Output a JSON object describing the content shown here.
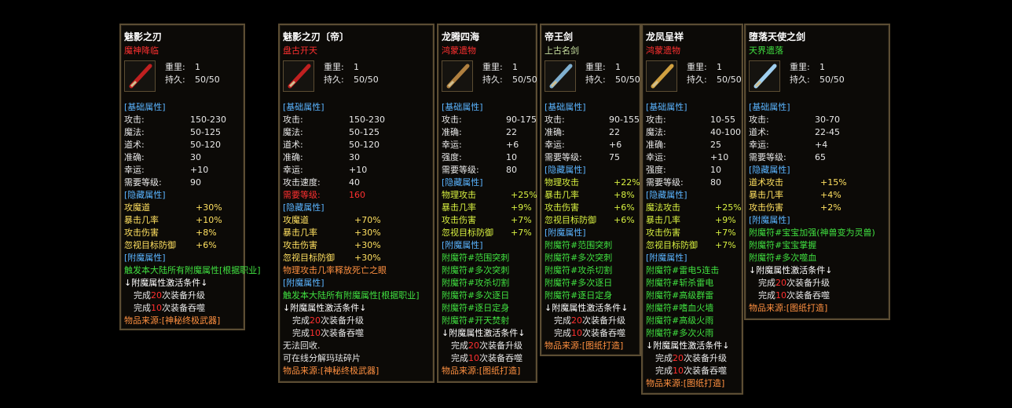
{
  "panels": [
    {
      "name": "魅影之刃",
      "subtitle": "魔神降临",
      "subtitle_color": "#ff3030",
      "weight": {
        "label": "重里:",
        "value": "1"
      },
      "durability": {
        "label": "持久:",
        "value": "50/50"
      },
      "lines": [
        {
          "text": "[基础属性]",
          "color": "#5ab4ff"
        },
        {
          "label": "攻击:",
          "value": "150-230",
          "color": "#e8e8e8"
        },
        {
          "label": "魔法:",
          "value": "50-125",
          "color": "#e8e8e8"
        },
        {
          "label": "道术:",
          "value": "50-120",
          "color": "#e8e8e8"
        },
        {
          "label": "准确:",
          "value": "30",
          "color": "#e8e8e8"
        },
        {
          "label": "幸运:",
          "value": "+10",
          "color": "#e8e8e8"
        },
        {
          "label": "需要等级:",
          "value": "90",
          "color": "#e8e8e8"
        },
        {
          "text": "[隐藏属性]",
          "color": "#5ab4ff"
        },
        {
          "label": "攻魔道",
          "value": "+30%",
          "color": "#ffe060"
        },
        {
          "label": "暴击几率",
          "value": "+10%",
          "color": "#ffe060"
        },
        {
          "label": "攻击伤害",
          "value": "+8%",
          "color": "#ffe060"
        },
        {
          "label": "忽视目标防御",
          "value": "+6%",
          "color": "#ffe060"
        },
        {
          "text": "[附魔属性]",
          "color": "#5ab4ff"
        },
        {
          "text": "触发本大陆所有附魔属性[根据职业]",
          "color": "#40e040"
        },
        {
          "text": "↓附魔属性激活条件↓",
          "color": "#ffffff"
        },
        {
          "parts": [
            "完成",
            "20",
            "次装备升级"
          ],
          "color": "#e8e8e8"
        },
        {
          "parts": [
            "完成",
            "10",
            "次装备吞噬"
          ],
          "color": "#e8e8e8"
        },
        {
          "text": "物品来源:[神秘终极武器]",
          "color": "#ff9040"
        }
      ]
    },
    {
      "name": "魅影之刃〔帝〕",
      "subtitle": "盘古开天",
      "subtitle_color": "#ff3030",
      "weight": {
        "label": "重里:",
        "value": "1"
      },
      "durability": {
        "label": "持久:",
        "value": "50/50"
      },
      "lines": [
        {
          "text": "[基础属性]",
          "color": "#5ab4ff"
        },
        {
          "label": "攻击:",
          "value": "150-230",
          "color": "#e8e8e8"
        },
        {
          "label": "魔法:",
          "value": "50-125",
          "color": "#e8e8e8"
        },
        {
          "label": "道术:",
          "value": "50-120",
          "color": "#e8e8e8"
        },
        {
          "label": "准确:",
          "value": "30",
          "color": "#e8e8e8"
        },
        {
          "label": "幸运:",
          "value": "+10",
          "color": "#e8e8e8"
        },
        {
          "label": "攻击速度:",
          "value": "40",
          "color": "#e8e8e8"
        },
        {
          "label": "需要等级:",
          "value": "160",
          "color": "#ff3030"
        },
        {
          "text": "[隐藏属性]",
          "color": "#5ab4ff"
        },
        {
          "label": "攻魔道",
          "value": "+70%",
          "color": "#ffe060"
        },
        {
          "label": "暴击几率",
          "value": "+30%",
          "color": "#ffe060"
        },
        {
          "label": "攻击伤害",
          "value": "+30%",
          "color": "#ffe060"
        },
        {
          "label": "忽视目标防御",
          "value": "+30%",
          "color": "#ffe060"
        },
        {
          "text": "物理攻击几率释放死亡之眼",
          "color": "#ff9040"
        },
        {
          "text": "[附魔属性]",
          "color": "#5ab4ff"
        },
        {
          "text": "触发本大陆所有附魔属性[根据职业]",
          "color": "#40e040"
        },
        {
          "text": "↓附魔属性激活条件↓",
          "color": "#ffffff"
        },
        {
          "parts": [
            "完成",
            "20",
            "次装备升级"
          ],
          "color": "#e8e8e8"
        },
        {
          "parts": [
            "完成",
            "10",
            "次装备吞噬"
          ],
          "color": "#e8e8e8"
        },
        {
          "text": "无法回收.",
          "color": "#e8e8e8"
        },
        {
          "text": "可在线分解玛珐碎片",
          "color": "#e8e8e8"
        },
        {
          "text": "物品来源:[神秘终极武器]",
          "color": "#ff9040"
        }
      ]
    },
    {
      "name": "龙腾四海",
      "subtitle": "鸿蒙遗物",
      "subtitle_color": "#ff3030",
      "weight": {
        "label": "重里:",
        "value": "1"
      },
      "durability": {
        "label": "持久:",
        "value": "50/50"
      },
      "lines": [
        {
          "text": "[基础属性]",
          "color": "#5ab4ff"
        },
        {
          "label": "攻击:",
          "value": "90-175",
          "color": "#e8e8e8"
        },
        {
          "label": "准确:",
          "value": "22",
          "color": "#e8e8e8"
        },
        {
          "label": "幸运:",
          "value": "+6",
          "color": "#e8e8e8"
        },
        {
          "label": "强度:",
          "value": "10",
          "color": "#e8e8e8"
        },
        {
          "label": "需要等级:",
          "value": "80",
          "color": "#e8e8e8"
        },
        {
          "text": "[隐藏属性]",
          "color": "#5ab4ff"
        },
        {
          "label": "物理攻击",
          "value": "+25%",
          "color": "#d8f040"
        },
        {
          "label": "暴击几率",
          "value": "+9%",
          "color": "#d8f040"
        },
        {
          "label": "攻击伤害",
          "value": "+7%",
          "color": "#d8f040"
        },
        {
          "label": "忽视目标防御",
          "value": "+7%",
          "color": "#d8f040"
        },
        {
          "text": "[附魔属性]",
          "color": "#5ab4ff"
        },
        {
          "text": "附魔符#范围突刺",
          "color": "#40e040"
        },
        {
          "text": "附魔符#多次突刺",
          "color": "#40e040"
        },
        {
          "text": "附魔符#攻杀切割",
          "color": "#40e040"
        },
        {
          "text": "附魔符#多次逐日",
          "color": "#40e040"
        },
        {
          "text": "附魔符#逐日定身",
          "color": "#40e040"
        },
        {
          "text": "附魔符#开天焚射",
          "color": "#40e040"
        },
        {
          "text": "↓附魔属性激活条件↓",
          "color": "#ffffff"
        },
        {
          "parts": [
            "完成",
            "20",
            "次装备升级"
          ],
          "color": "#e8e8e8"
        },
        {
          "parts": [
            "完成",
            "10",
            "次装备吞噬"
          ],
          "color": "#e8e8e8"
        },
        {
          "text": "物品来源:[图纸打造]",
          "color": "#ff9040"
        }
      ]
    },
    {
      "name": "帝王剑",
      "subtitle": "上古名剑",
      "subtitle_color": "#c8e0a0",
      "weight": {
        "label": "重里:",
        "value": "1"
      },
      "durability": {
        "label": "持久:",
        "value": "50/50"
      },
      "lines": [
        {
          "text": "[基础属性]",
          "color": "#5ab4ff"
        },
        {
          "label": "攻击:",
          "value": "90-155",
          "color": "#e8e8e8"
        },
        {
          "label": "准确:",
          "value": "22",
          "color": "#e8e8e8"
        },
        {
          "label": "幸运:",
          "value": "+6",
          "color": "#e8e8e8"
        },
        {
          "label": "需要等级:",
          "value": "75",
          "color": "#e8e8e8"
        },
        {
          "text": "[隐藏属性]",
          "color": "#5ab4ff"
        },
        {
          "label": "物理攻击",
          "value": "+22%",
          "color": "#d8f040"
        },
        {
          "label": "暴击几率",
          "value": "+8%",
          "color": "#d8f040"
        },
        {
          "label": "攻击伤害",
          "value": "+6%",
          "color": "#d8f040"
        },
        {
          "label": "忽视目标防御",
          "value": "+6%",
          "color": "#d8f040"
        },
        {
          "text": "[附魔属性]",
          "color": "#5ab4ff"
        },
        {
          "text": "附魔符#范围突刺",
          "color": "#40e040"
        },
        {
          "text": "附魔符#多次突刺",
          "color": "#40e040"
        },
        {
          "text": "附魔符#攻杀切割",
          "color": "#40e040"
        },
        {
          "text": "附魔符#多次逐日",
          "color": "#40e040"
        },
        {
          "text": "附魔符#逐日定身",
          "color": "#40e040"
        },
        {
          "text": "↓附魔属性激活条件↓",
          "color": "#ffffff"
        },
        {
          "parts": [
            "完成",
            "20",
            "次装备升级"
          ],
          "color": "#e8e8e8"
        },
        {
          "parts": [
            "完成",
            "10",
            "次装备吞噬"
          ],
          "color": "#e8e8e8"
        },
        {
          "text": "物品来源:[图纸打造]",
          "color": "#ff9040"
        }
      ]
    },
    {
      "name": "龙凤呈祥",
      "subtitle": "鸿蒙遗物",
      "subtitle_color": "#ff3030",
      "weight": {
        "label": "重里:",
        "value": "1"
      },
      "durability": {
        "label": "持久:",
        "value": "50/50"
      },
      "lines": [
        {
          "text": "[基础属性]",
          "color": "#5ab4ff"
        },
        {
          "label": "攻击:",
          "value": "10-55",
          "color": "#e8e8e8"
        },
        {
          "label": "魔法:",
          "value": "40-100",
          "color": "#e8e8e8"
        },
        {
          "label": "准确:",
          "value": "25",
          "color": "#e8e8e8"
        },
        {
          "label": "幸运:",
          "value": "+10",
          "color": "#e8e8e8"
        },
        {
          "label": "强度:",
          "value": "10",
          "color": "#e8e8e8"
        },
        {
          "label": "需要等级:",
          "value": "80",
          "color": "#e8e8e8"
        },
        {
          "text": "[隐藏属性]",
          "color": "#5ab4ff"
        },
        {
          "label": "魔法攻击",
          "value": "+25%",
          "color": "#d8f040"
        },
        {
          "label": "暴击几率",
          "value": "+9%",
          "color": "#d8f040"
        },
        {
          "label": "攻击伤害",
          "value": "+7%",
          "color": "#d8f040"
        },
        {
          "label": "忽视目标防御",
          "value": "+7%",
          "color": "#d8f040"
        },
        {
          "text": "[附魔属性]",
          "color": "#5ab4ff"
        },
        {
          "text": "附魔符#雷电5连击",
          "color": "#40e040"
        },
        {
          "text": "附魔符#斩杀雷电",
          "color": "#40e040"
        },
        {
          "text": "附魔符#高级群雷",
          "color": "#40e040"
        },
        {
          "text": "附魔符#嗜血火墙",
          "color": "#40e040"
        },
        {
          "text": "附魔符#高级火雨",
          "color": "#40e040"
        },
        {
          "text": "附魔符#多次火雨",
          "color": "#40e040"
        },
        {
          "text": "↓附魔属性激活条件↓",
          "color": "#ffffff"
        },
        {
          "parts": [
            "完成",
            "20",
            "次装备升级"
          ],
          "color": "#e8e8e8"
        },
        {
          "parts": [
            "完成",
            "10",
            "次装备吞噬"
          ],
          "color": "#e8e8e8"
        },
        {
          "text": "物品来源:[图纸打造]",
          "color": "#ff9040"
        }
      ]
    },
    {
      "name": "堕落天使之剑",
      "subtitle": "天界遗落",
      "subtitle_color": "#40e040",
      "weight": {
        "label": "重里:",
        "value": "1"
      },
      "durability": {
        "label": "持久:",
        "value": "50/50"
      },
      "lines": [
        {
          "text": "[基础属性]",
          "color": "#5ab4ff"
        },
        {
          "label": "攻击:",
          "value": "30-70",
          "color": "#e8e8e8"
        },
        {
          "label": "道术:",
          "value": "22-45",
          "color": "#e8e8e8"
        },
        {
          "label": "幸运:",
          "value": "+4",
          "color": "#e8e8e8"
        },
        {
          "label": "需要等级:",
          "value": "65",
          "color": "#e8e8e8"
        },
        {
          "text": "[隐藏属性]",
          "color": "#5ab4ff"
        },
        {
          "label": "道术攻击",
          "value": "+15%",
          "color": "#ffe060"
        },
        {
          "label": "暴击几率",
          "value": "+4%",
          "color": "#ffe060"
        },
        {
          "label": "攻击伤害",
          "value": "+2%",
          "color": "#ffe060"
        },
        {
          "text": "[附魔属性]",
          "color": "#5ab4ff"
        },
        {
          "text": "附魔符#宝宝加强(神兽变为灵兽)",
          "color": "#40e040"
        },
        {
          "text": "附魔符#宝宝掌握",
          "color": "#40e040"
        },
        {
          "text": "附魔符#多次噬血",
          "color": "#40e040"
        },
        {
          "text": "↓附魔属性激活条件↓",
          "color": "#ffffff"
        },
        {
          "parts": [
            "完成",
            "20",
            "次装备升级"
          ],
          "color": "#e8e8e8"
        },
        {
          "parts": [
            "完成",
            "10",
            "次装备吞噬"
          ],
          "color": "#e8e8e8"
        },
        {
          "text": "物品来源:[图纸打造]",
          "color": "#ff9040"
        }
      ]
    }
  ]
}
